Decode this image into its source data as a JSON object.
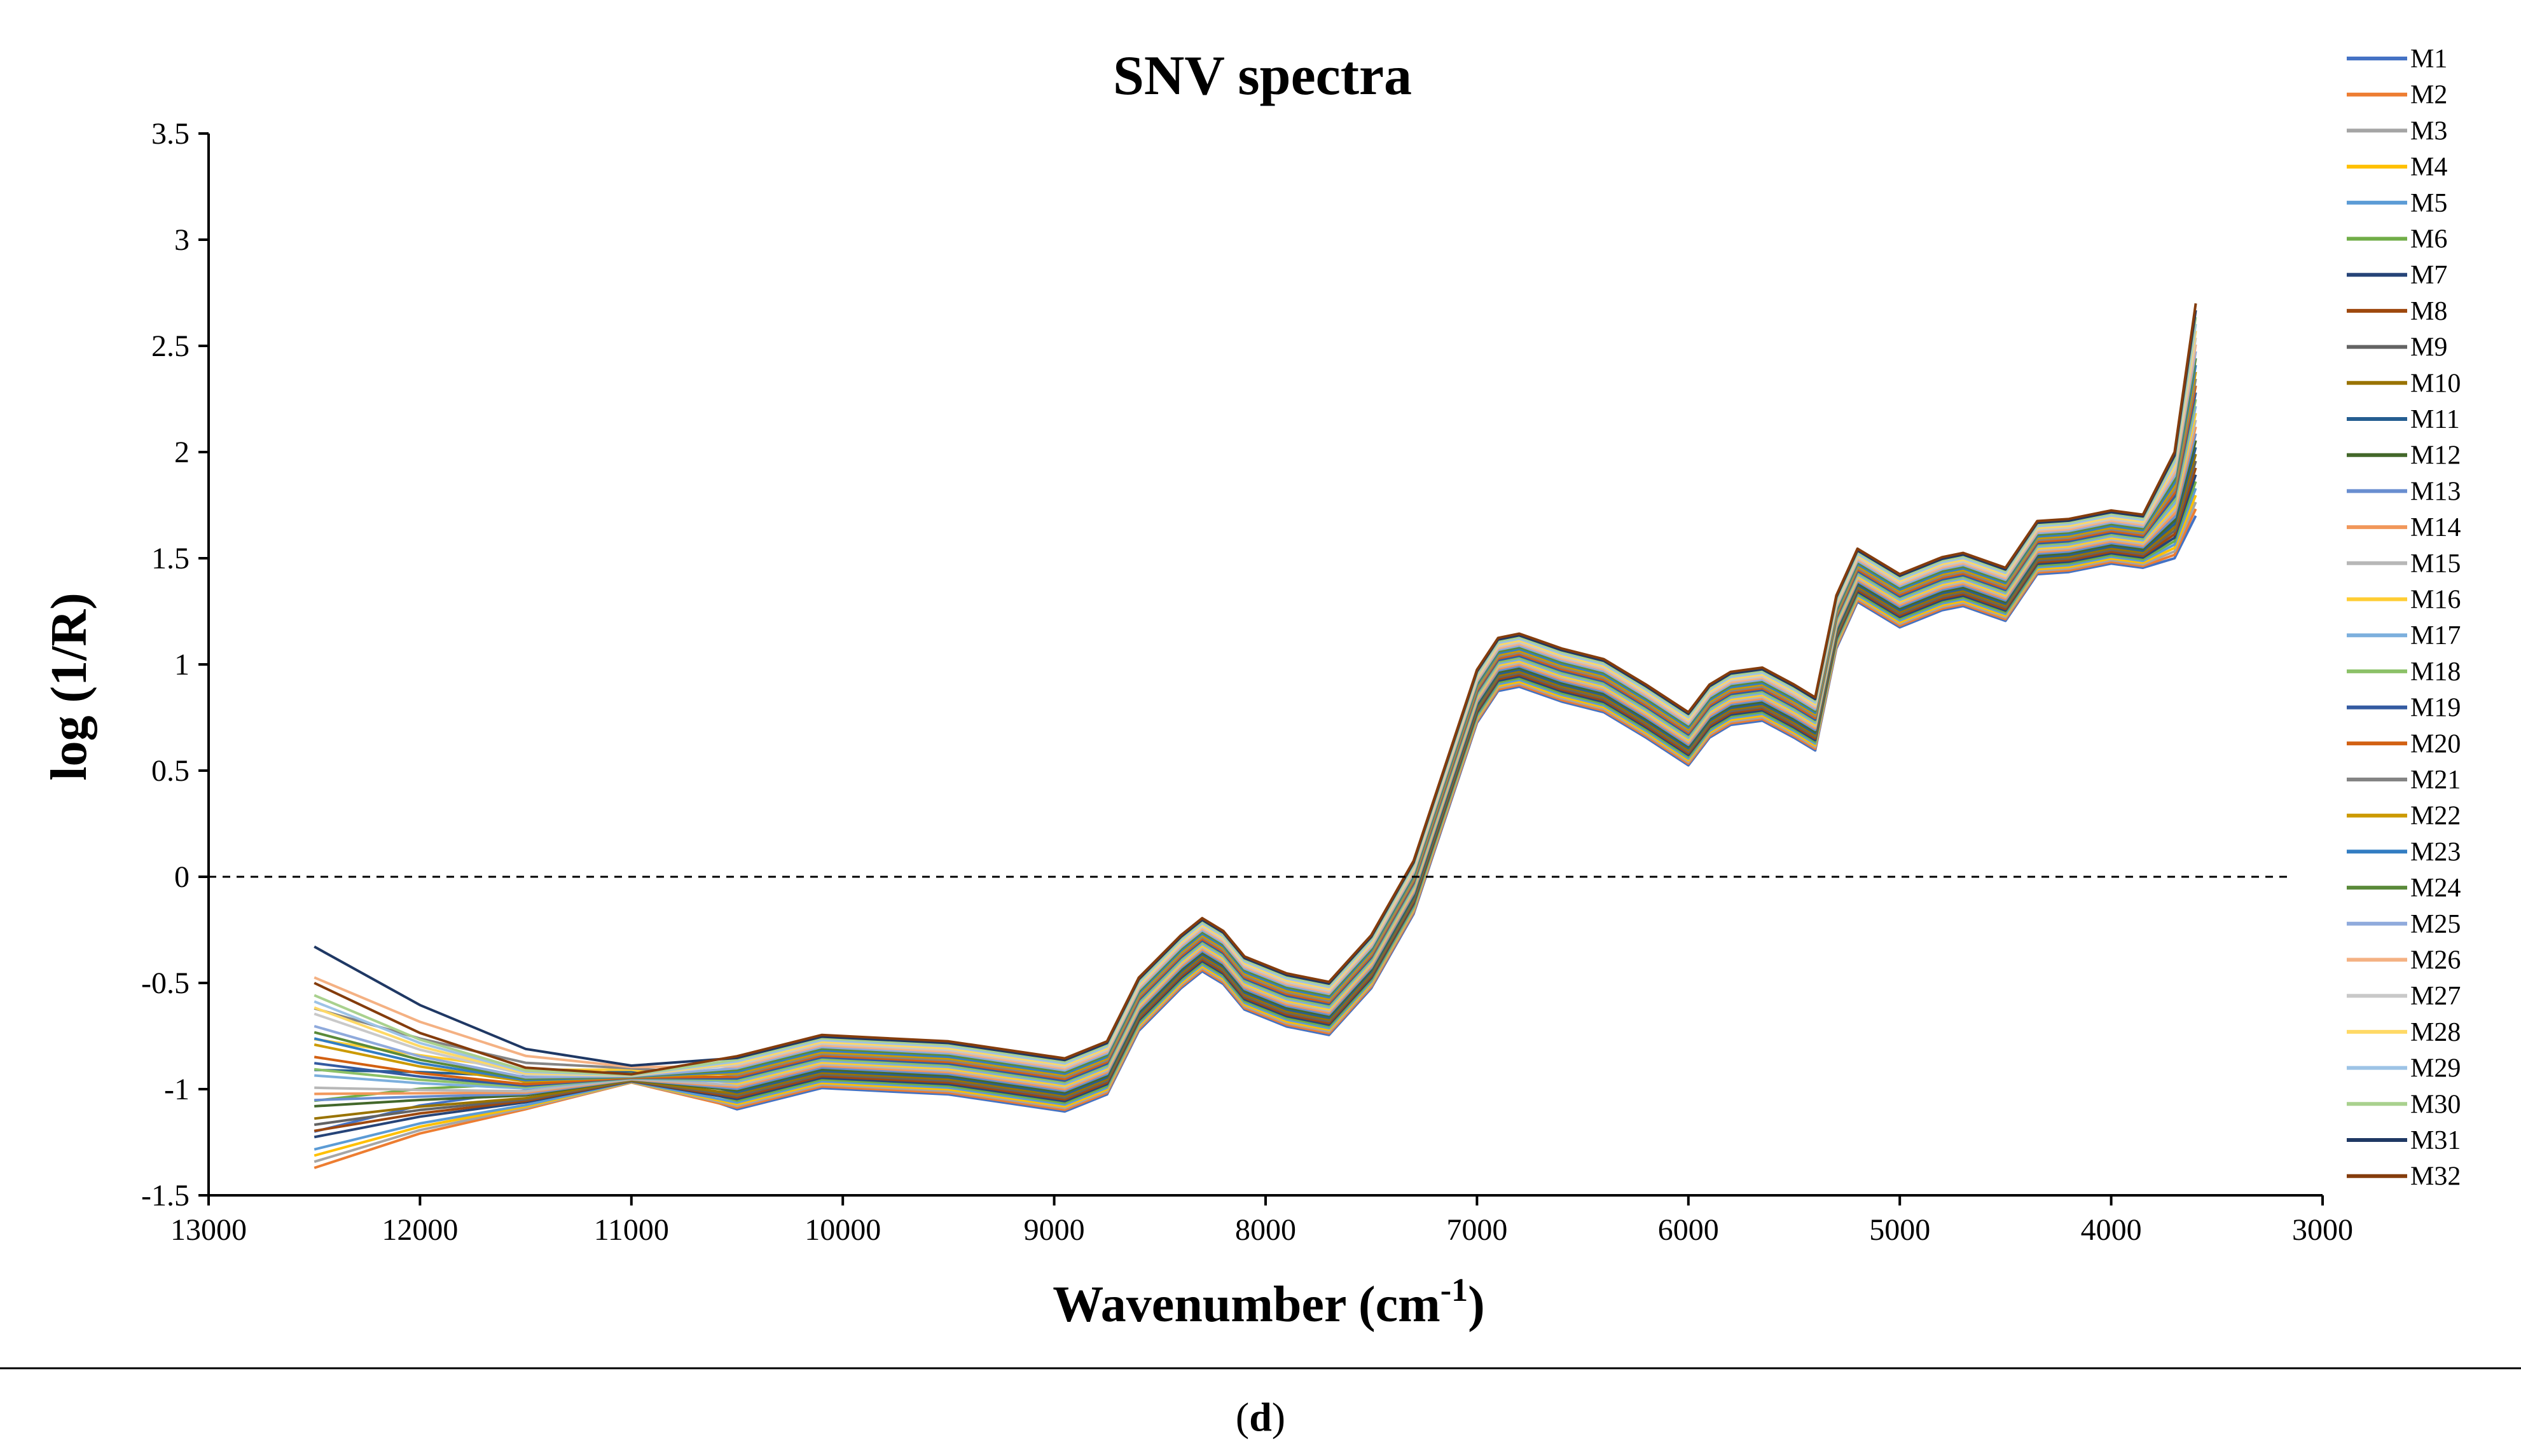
{
  "chart_data": {
    "type": "line",
    "title": "SNV spectra",
    "xlabel": "Wavenumber (cm",
    "xlabel_sup": "-1",
    "xlabel_end": ")",
    "ylabel": "log (1/R)",
    "xlim": [
      13000,
      3000
    ],
    "ylim": [
      -1.5,
      3.5
    ],
    "x_reversed": true,
    "x_ticks": [
      "13000",
      "12000",
      "11000",
      "10000",
      "9000",
      "8000",
      "7000",
      "6000",
      "5000",
      "4000",
      "3000"
    ],
    "y_ticks": [
      "3.5",
      "3",
      "2.5",
      "2",
      "1.5",
      "1",
      "0.5",
      "0",
      "-0.5",
      "-1",
      "-1.5"
    ],
    "zero_line": true,
    "grid": false,
    "legend_position": "right",
    "caption_open": "(",
    "caption_letter": "d",
    "caption_close": ")",
    "x": [
      12500,
      12000,
      11500,
      11000,
      10500,
      10100,
      9500,
      8950,
      8750,
      8600,
      8400,
      8300,
      8200,
      8100,
      7900,
      7700,
      7500,
      7300,
      7150,
      7000,
      6900,
      6800,
      6600,
      6400,
      6200,
      6000,
      5900,
      5800,
      5650,
      5500,
      5400,
      5300,
      5200,
      5000,
      4800,
      4700,
      4500,
      4350,
      4200,
      4000,
      3850,
      3700,
      3600
    ],
    "base_shape": [
      -0.95,
      -0.98,
      -1.0,
      -0.95,
      -0.97,
      -0.87,
      -0.9,
      -0.98,
      -0.9,
      -0.6,
      -0.4,
      -0.32,
      -0.38,
      -0.5,
      -0.58,
      -0.62,
      -0.4,
      -0.05,
      0.4,
      0.85,
      1.0,
      1.02,
      0.95,
      0.9,
      0.78,
      0.65,
      0.78,
      0.84,
      0.86,
      0.78,
      0.72,
      1.2,
      1.42,
      1.3,
      1.38,
      1.4,
      1.33,
      1.55,
      1.56,
      1.6,
      1.58,
      1.75,
      2.2
    ],
    "series": [
      {
        "name": "M1",
        "color": "#4472c4"
      },
      {
        "name": "M2",
        "color": "#ed7d31"
      },
      {
        "name": "M3",
        "color": "#a5a5a5"
      },
      {
        "name": "M4",
        "color": "#ffc000"
      },
      {
        "name": "M5",
        "color": "#5b9bd5"
      },
      {
        "name": "M6",
        "color": "#70ad47"
      },
      {
        "name": "M7",
        "color": "#264478"
      },
      {
        "name": "M8",
        "color": "#9e480e"
      },
      {
        "name": "M9",
        "color": "#636363"
      },
      {
        "name": "M10",
        "color": "#997300"
      },
      {
        "name": "M11",
        "color": "#255e91"
      },
      {
        "name": "M12",
        "color": "#43682b"
      },
      {
        "name": "M13",
        "color": "#698ed0"
      },
      {
        "name": "M14",
        "color": "#f1975a"
      },
      {
        "name": "M15",
        "color": "#b7b7b7"
      },
      {
        "name": "M16",
        "color": "#ffcd33"
      },
      {
        "name": "M17",
        "color": "#7cafdd"
      },
      {
        "name": "M18",
        "color": "#8cc168"
      },
      {
        "name": "M19",
        "color": "#335aa1"
      },
      {
        "name": "M20",
        "color": "#d26012"
      },
      {
        "name": "M21",
        "color": "#848484"
      },
      {
        "name": "M22",
        "color": "#cc9a00"
      },
      {
        "name": "M23",
        "color": "#327dc2"
      },
      {
        "name": "M24",
        "color": "#5a8a39"
      },
      {
        "name": "M25",
        "color": "#8faadc"
      },
      {
        "name": "M26",
        "color": "#f4b183"
      },
      {
        "name": "M27",
        "color": "#c9c9c9"
      },
      {
        "name": "M28",
        "color": "#ffd966"
      },
      {
        "name": "M29",
        "color": "#9dc3e6"
      },
      {
        "name": "M30",
        "color": "#a9d18e"
      },
      {
        "name": "M31",
        "color": "#1f3864"
      },
      {
        "name": "M32",
        "color": "#843c0c"
      }
    ]
  }
}
